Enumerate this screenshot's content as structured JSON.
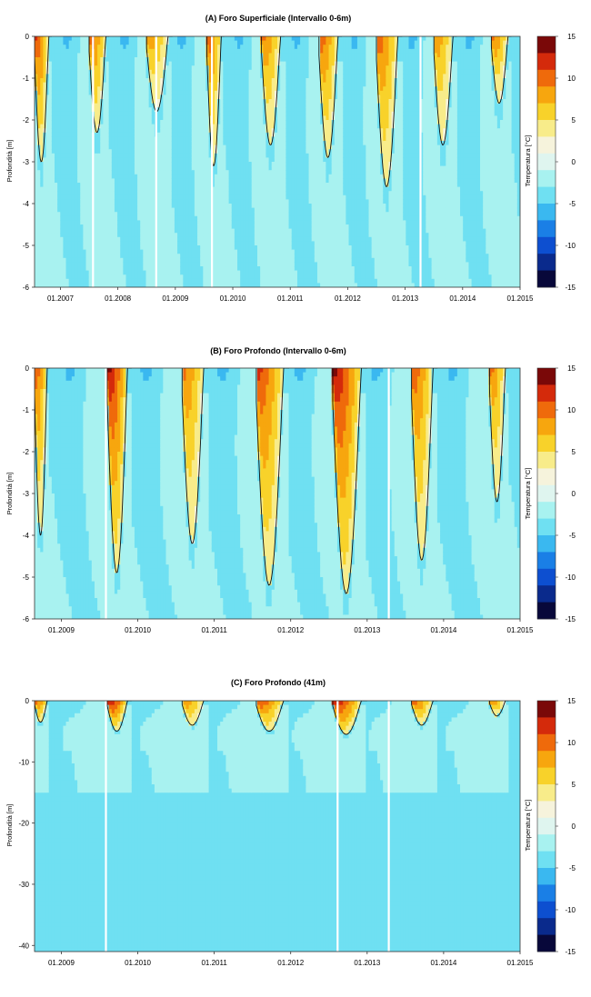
{
  "colorbar": {
    "label": "Temperatura [°C]",
    "min": -15,
    "max": 15,
    "ticks": [
      15,
      10,
      5,
      0,
      -5,
      -10,
      -15
    ],
    "colors": [
      "#08083a",
      "#0a2a8c",
      "#0d4fd0",
      "#1a7fe6",
      "#3ab8f0",
      "#6fe0f2",
      "#a8f2f0",
      "#dff5ef",
      "#f6f3dc",
      "#f8ec8a",
      "#f8d22a",
      "#f7a60e",
      "#ef6a0b",
      "#d42a0b",
      "#7a0808"
    ]
  },
  "chart_data": [
    {
      "type": "heatmap",
      "title": "(A) Foro Superficiale (Intervallo 0-6m)",
      "ylabel": "Profondità [m]",
      "xlabel": "",
      "xlim": [
        2006.55,
        2015.0
      ],
      "ylim": [
        -6,
        0
      ],
      "yticks": [
        0,
        -1,
        -2,
        -3,
        -4,
        -5,
        -6
      ],
      "xticks": [
        {
          "label": "01.2007",
          "value": 2007.0
        },
        {
          "label": "01.2008",
          "value": 2008.0
        },
        {
          "label": "01.2009",
          "value": 2009.0
        },
        {
          "label": "01.2010",
          "value": 2010.0
        },
        {
          "label": "01.2011",
          "value": 2011.0
        },
        {
          "label": "01.2012",
          "value": 2012.0
        },
        {
          "label": "01.2013",
          "value": 2013.0
        },
        {
          "label": "01.2014",
          "value": 2014.0
        },
        {
          "label": "01.2015",
          "value": 2015.0
        }
      ],
      "summers": [
        {
          "start": 2006.55,
          "end": 2006.85,
          "depth": -3.0,
          "peak": 12
        },
        {
          "start": 2007.5,
          "end": 2007.85,
          "depth": -2.3,
          "peak": 11
        },
        {
          "start": 2008.5,
          "end": 2008.95,
          "depth": -1.8,
          "peak": 9
        },
        {
          "start": 2009.55,
          "end": 2009.85,
          "depth": -3.1,
          "peak": 11
        },
        {
          "start": 2010.5,
          "end": 2010.9,
          "depth": -2.6,
          "peak": 10
        },
        {
          "start": 2011.5,
          "end": 2011.9,
          "depth": -2.9,
          "peak": 11
        },
        {
          "start": 2012.5,
          "end": 2012.95,
          "depth": -3.6,
          "peak": 11
        },
        {
          "start": 2013.5,
          "end": 2013.9,
          "depth": -2.6,
          "peak": 9
        },
        {
          "start": 2014.5,
          "end": 2014.85,
          "depth": -1.6,
          "peak": 10
        }
      ],
      "gaps": [
        2007.55,
        2008.65,
        2009.62,
        2013.25
      ]
    },
    {
      "type": "heatmap",
      "title": "(B) Foro Profondo (Intervallo 0-6m)",
      "ylabel": "Profondità [m]",
      "xlabel": "",
      "xlim": [
        2008.65,
        2015.0
      ],
      "ylim": [
        -6,
        0
      ],
      "yticks": [
        0,
        -1,
        -2,
        -3,
        -4,
        -5,
        -6
      ],
      "xticks": [
        {
          "label": "01.2009",
          "value": 2009.0
        },
        {
          "label": "01.2010",
          "value": 2010.0
        },
        {
          "label": "01.2011",
          "value": 2011.0
        },
        {
          "label": "01.2012",
          "value": 2012.0
        },
        {
          "label": "01.2013",
          "value": 2013.0
        },
        {
          "label": "01.2014",
          "value": 2014.0
        },
        {
          "label": "01.2015",
          "value": 2015.0
        }
      ],
      "summers": [
        {
          "start": 2008.65,
          "end": 2008.85,
          "depth": -4.0,
          "peak": 11
        },
        {
          "start": 2009.6,
          "end": 2009.92,
          "depth": -4.9,
          "peak": 14
        },
        {
          "start": 2010.58,
          "end": 2010.92,
          "depth": -4.2,
          "peak": 10
        },
        {
          "start": 2011.55,
          "end": 2011.98,
          "depth": -5.2,
          "peak": 12
        },
        {
          "start": 2012.55,
          "end": 2013.0,
          "depth": -5.4,
          "peak": 14
        },
        {
          "start": 2013.58,
          "end": 2013.92,
          "depth": -4.6,
          "peak": 11
        },
        {
          "start": 2014.6,
          "end": 2014.85,
          "depth": -3.2,
          "peak": 10
        }
      ],
      "gaps": [
        2009.57,
        2013.27
      ]
    },
    {
      "type": "heatmap",
      "title": "(C) Foro Profondo (41m)",
      "ylabel": "Profondità [m]",
      "xlabel": "",
      "xlim": [
        2008.65,
        2015.0
      ],
      "ylim": [
        -41,
        0
      ],
      "yticks": [
        0,
        -10,
        -20,
        -30,
        -40
      ],
      "xticks": [
        {
          "label": "01.2009",
          "value": 2009.0
        },
        {
          "label": "01.2010",
          "value": 2010.0
        },
        {
          "label": "01.2011",
          "value": 2011.0
        },
        {
          "label": "01.2012",
          "value": 2012.0
        },
        {
          "label": "01.2013",
          "value": 2013.0
        },
        {
          "label": "01.2014",
          "value": 2014.0
        },
        {
          "label": "01.2015",
          "value": 2015.0
        }
      ],
      "summers": [
        {
          "start": 2008.65,
          "end": 2008.85,
          "depth": -3.5,
          "peak": 11
        },
        {
          "start": 2009.6,
          "end": 2009.92,
          "depth": -5.0,
          "peak": 14
        },
        {
          "start": 2010.58,
          "end": 2010.92,
          "depth": -4.0,
          "peak": 10
        },
        {
          "start": 2011.55,
          "end": 2011.98,
          "depth": -5.0,
          "peak": 12
        },
        {
          "start": 2012.55,
          "end": 2013.0,
          "depth": -5.5,
          "peak": 14
        },
        {
          "start": 2013.58,
          "end": 2013.92,
          "depth": -4.0,
          "peak": 11
        },
        {
          "start": 2014.6,
          "end": 2014.85,
          "depth": -2.5,
          "peak": 10
        }
      ],
      "gaps": [
        2009.57,
        2012.6,
        2013.27
      ]
    }
  ]
}
